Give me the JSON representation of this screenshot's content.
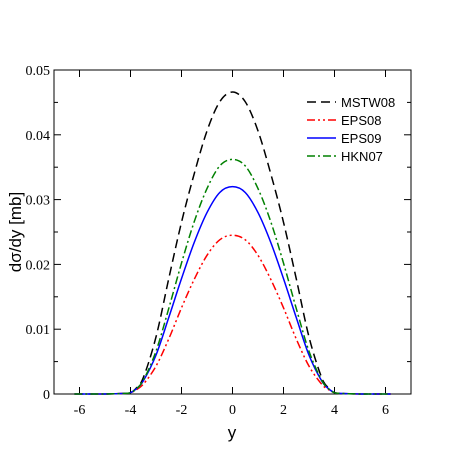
{
  "chart_data": {
    "type": "line",
    "xlabel": "y",
    "ylabel": "dσ/dy [mb]",
    "xlim": [
      -7,
      7
    ],
    "ylim": [
      0,
      0.05
    ],
    "x_ticks": [
      -6,
      -4,
      -2,
      0,
      2,
      4,
      6
    ],
    "x_tick_labels": [
      "-6",
      "-4",
      "-2",
      "0",
      "2",
      "4",
      "6"
    ],
    "y_ticks": [
      0,
      0.01,
      0.02,
      0.03,
      0.04,
      0.05
    ],
    "y_tick_labels": [
      "0",
      "0.01",
      "0.02",
      "0.03",
      "0.04",
      "0.05"
    ],
    "grid": false,
    "legend_position": "top-right",
    "x": [
      -6.2,
      -5,
      -4.2,
      -4,
      -3.8,
      -3.5,
      -3,
      -2.5,
      -2,
      -1.5,
      -1,
      -0.5,
      0,
      0.5,
      1,
      1.5,
      2,
      2.5,
      3,
      3.5,
      3.8,
      4,
      4.2,
      5,
      6.2
    ],
    "series": [
      {
        "name": "MSTW08",
        "color": "#000000",
        "dash": "dashed",
        "values": [
          0,
          0,
          0.0001,
          0.0002,
          0.0008,
          0.0025,
          0.0088,
          0.0178,
          0.0265,
          0.034,
          0.0406,
          0.0451,
          0.0466,
          0.0451,
          0.0406,
          0.034,
          0.0265,
          0.0178,
          0.0088,
          0.0025,
          0.0008,
          0.0002,
          0.0001,
          0,
          0
        ]
      },
      {
        "name": "EPS08",
        "color": "#ff0000",
        "dash": "dash-dot-dot",
        "values": [
          0,
          0,
          0.0001,
          0.0002,
          0.0006,
          0.0015,
          0.0043,
          0.0085,
          0.0133,
          0.0177,
          0.0214,
          0.0238,
          0.0245,
          0.0238,
          0.0214,
          0.0177,
          0.0133,
          0.0085,
          0.0043,
          0.0015,
          0.0006,
          0.0002,
          0.0001,
          0,
          0
        ]
      },
      {
        "name": "EPS09",
        "color": "#0000ff",
        "dash": "solid",
        "values": [
          0,
          0,
          0.0001,
          0.0002,
          0.0007,
          0.002,
          0.006,
          0.0118,
          0.0178,
          0.0234,
          0.028,
          0.0311,
          0.032,
          0.0311,
          0.028,
          0.0234,
          0.0178,
          0.0118,
          0.006,
          0.002,
          0.0007,
          0.0002,
          0.0001,
          0,
          0
        ]
      },
      {
        "name": "HKN07",
        "color": "#008000",
        "dash": "dash-dot",
        "values": [
          0,
          0,
          0.0001,
          0.0002,
          0.0007,
          0.0021,
          0.0066,
          0.0132,
          0.0202,
          0.0266,
          0.0317,
          0.0352,
          0.0362,
          0.0352,
          0.0317,
          0.0266,
          0.0202,
          0.0132,
          0.0066,
          0.0021,
          0.0007,
          0.0002,
          0.0001,
          0,
          0
        ]
      }
    ]
  }
}
